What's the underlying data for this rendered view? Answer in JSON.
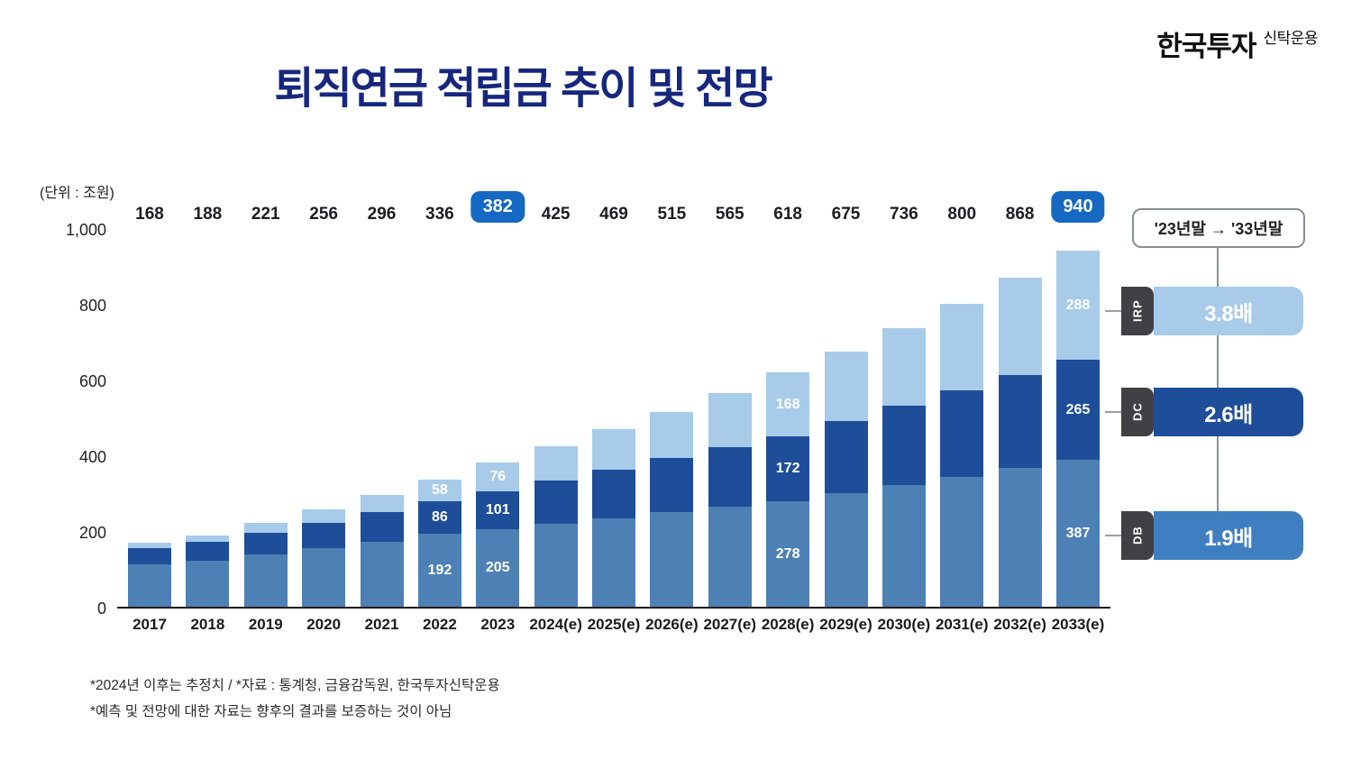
{
  "logo": {
    "main": "한국투자",
    "sub": "신탁운용"
  },
  "title": "퇴직연금 적립금 추이 및 전망",
  "unit_label": "(단위 : 조원)",
  "comparison": {
    "header": "'23년말 → '33년말",
    "items": [
      {
        "label": "IRP",
        "value": "3.8배",
        "color": "#a7cbe9"
      },
      {
        "label": "DC",
        "value": "2.6배",
        "color": "#1e4d99"
      },
      {
        "label": "DB",
        "value": "1.9배",
        "color": "#3f7fc1"
      }
    ]
  },
  "footnotes": [
    "*2024년 이후는 추정치  /  *자료 : 통계청, 금융감독원, 한국투자신탁운용",
    "*예측 및 전망에 대한 자료는 향후의 결과를 보증하는 것이 아님"
  ],
  "chart_data": {
    "type": "bar",
    "stacked": true,
    "title": "퇴직연금 적립금 추이 및 전망",
    "unit": "조원",
    "categories": [
      "2017",
      "2018",
      "2019",
      "2020",
      "2021",
      "2022",
      "2023",
      "2024(e)",
      "2025(e)",
      "2026(e)",
      "2027(e)",
      "2028(e)",
      "2029(e)",
      "2030(e)",
      "2031(e)",
      "2032(e)",
      "2033(e)"
    ],
    "totals": [
      168,
      188,
      221,
      256,
      296,
      336,
      382,
      425,
      469,
      515,
      565,
      618,
      675,
      736,
      800,
      868,
      940
    ],
    "highlighted_totals": [
      "2023",
      "2033(e)"
    ],
    "series": [
      {
        "name": "DB",
        "color": "#4d80b4",
        "values": [
          111,
          121,
          138,
          154,
          172,
          192,
          205,
          220,
          234,
          249,
          264,
          278,
          300,
          322,
          344,
          366,
          387
        ]
      },
      {
        "name": "DC",
        "color": "#1e4d99",
        "values": [
          42,
          50,
          58,
          67,
          78,
          86,
          101,
          115,
          129,
          144,
          158,
          172,
          191,
          209,
          228,
          246,
          265
        ]
      },
      {
        "name": "IRP",
        "color": "#a7cbe9",
        "values": [
          15,
          17,
          25,
          35,
          46,
          58,
          76,
          90,
          106,
          122,
          143,
          168,
          184,
          205,
          228,
          256,
          288
        ]
      }
    ],
    "segment_labels": {
      "2022": [
        192,
        86,
        58
      ],
      "2023": [
        205,
        101,
        76
      ],
      "2028(e)": [
        278,
        172,
        168
      ],
      "2033(e)": [
        387,
        265,
        288
      ]
    },
    "ylim": [
      0,
      1000
    ],
    "yticks": [
      {
        "label": "0",
        "value": 0
      },
      {
        "label": "200",
        "value": 200
      },
      {
        "label": "400",
        "value": 400
      },
      {
        "label": "600",
        "value": 600
      },
      {
        "label": "800",
        "value": 800
      },
      {
        "label": "1,000",
        "value": 1000
      }
    ],
    "legend_position": "none",
    "grid": false
  }
}
